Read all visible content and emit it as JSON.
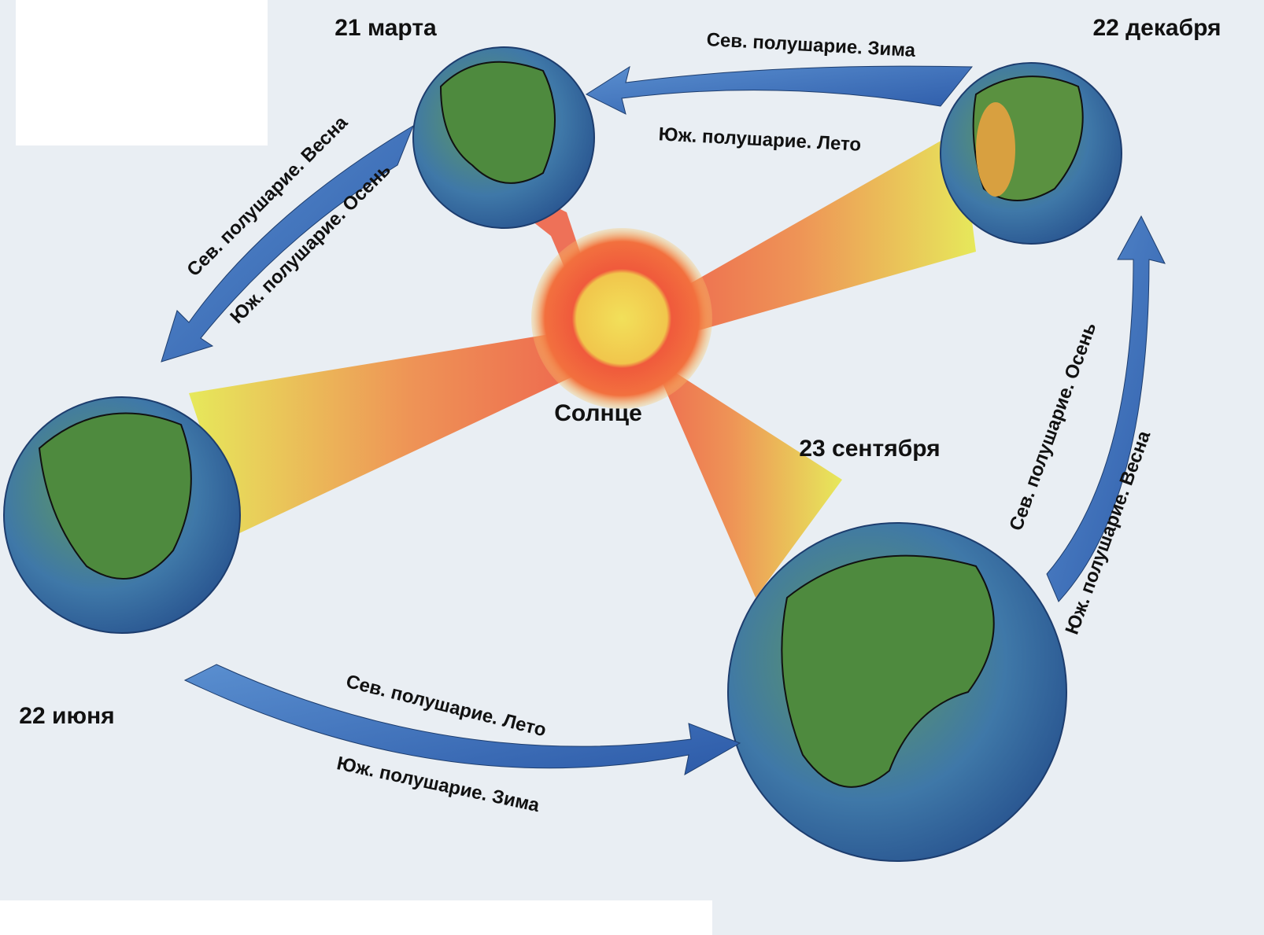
{
  "sun": {
    "label": "Солнце"
  },
  "positions": [
    {
      "date": "21 марта"
    },
    {
      "date": "22 декабря"
    },
    {
      "date": "22 июня"
    },
    {
      "date": "23 сентября"
    }
  ],
  "arrows": [
    {
      "north": "Сев. полушарие. Зима",
      "south": "Юж. полушарие. Лето"
    },
    {
      "north": "Сев. полушарие. Весна",
      "south": "Юж. полушарие. Осень"
    },
    {
      "north": "Сев. полушарие. Лето",
      "south": "Юж. полушарие. Зима"
    },
    {
      "north": "Сев. полушарие. Осень",
      "south": "Юж. полушарие. Весна"
    }
  ]
}
